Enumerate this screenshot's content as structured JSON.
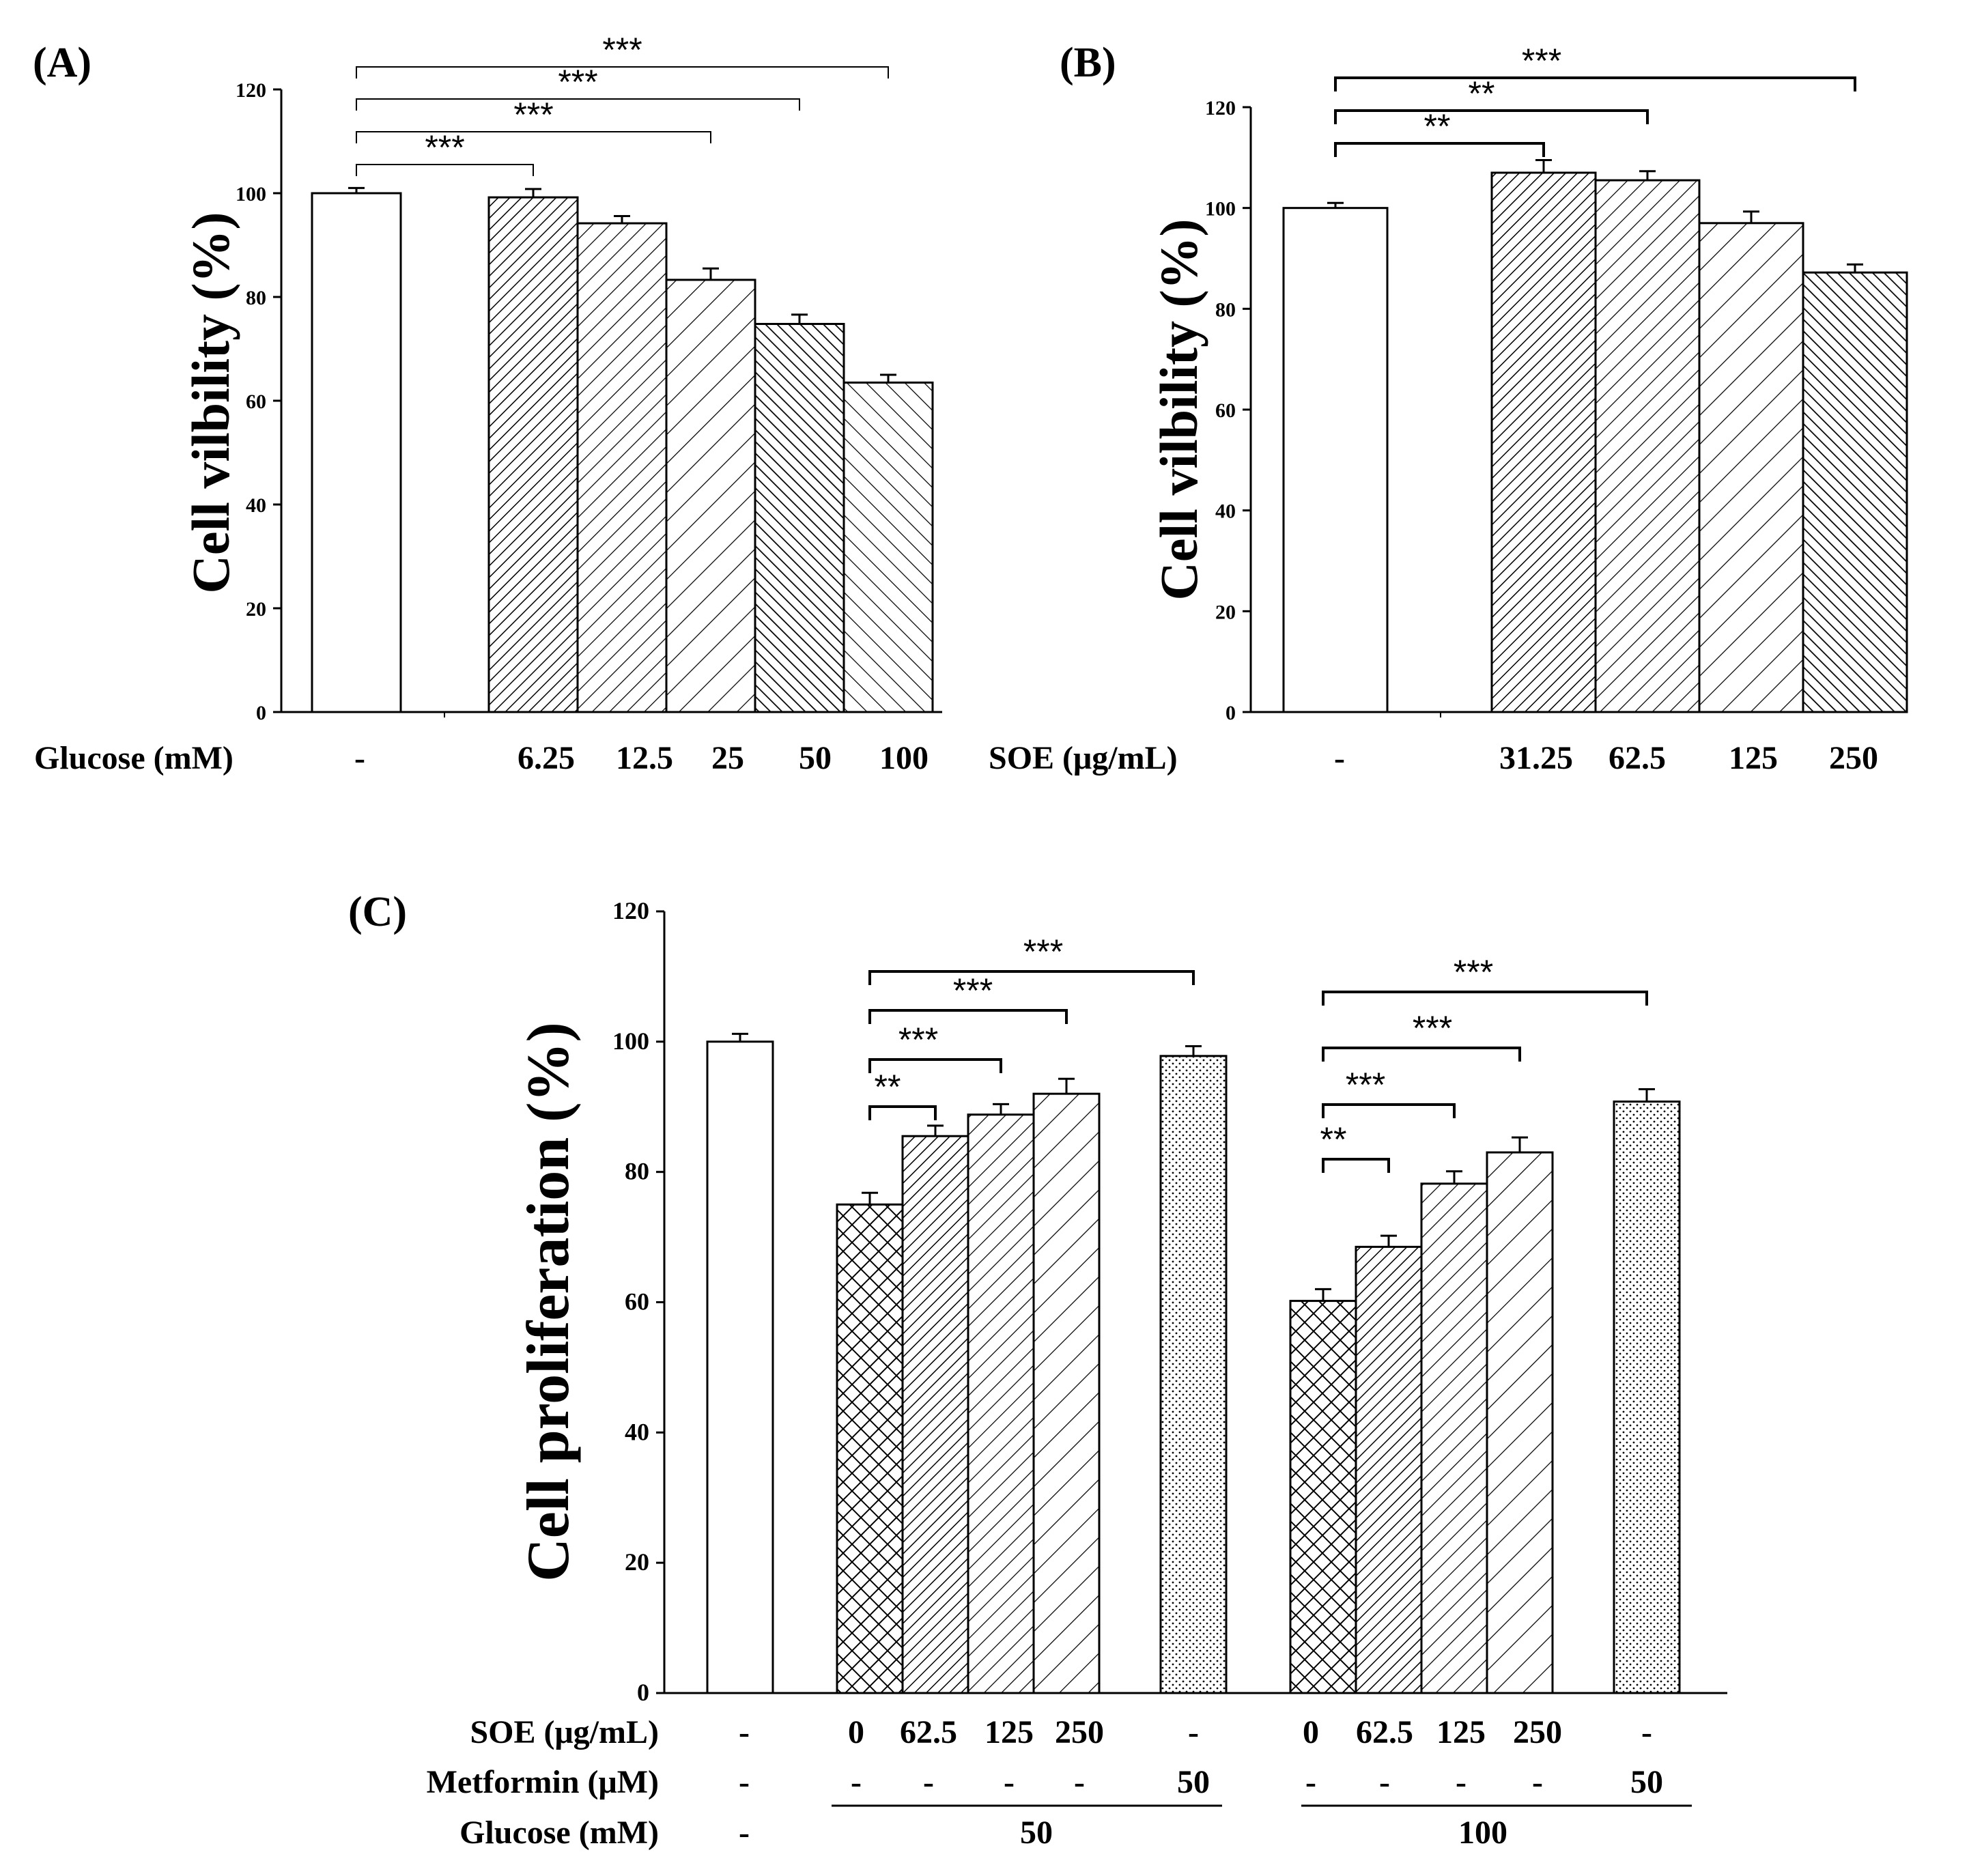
{
  "chart_data": [
    {
      "type": "bar",
      "panel_label": "(A)",
      "ylabel": "Cell vilbility (%)",
      "ylim": [
        0,
        120
      ],
      "yticks": [
        "0",
        "20",
        "40",
        "60",
        "80",
        "100",
        "120"
      ],
      "xlabel": "Glucose (mM)",
      "categories": [
        "-",
        "6.25",
        "12.5",
        "25",
        "50",
        "100"
      ],
      "values": [
        100,
        99.2,
        94.2,
        83.3,
        74.8,
        63.5
      ],
      "errors": [
        1.0,
        1.6,
        1.4,
        2.2,
        1.8,
        1.5
      ],
      "significance": [
        {
          "from": "-",
          "to": "6.25",
          "label": "***"
        },
        {
          "from": "-",
          "to": "25",
          "label": "***"
        },
        {
          "from": "-",
          "to": "50",
          "label": "***"
        },
        {
          "from": "-",
          "to": "100",
          "label": "***"
        }
      ]
    },
    {
      "type": "bar",
      "panel_label": "(B)",
      "ylabel": "Cell vilbility (%)",
      "ylim": [
        0,
        120
      ],
      "yticks": [
        "0",
        "20",
        "40",
        "60",
        "80",
        "100",
        "120"
      ],
      "xlabel": "SOE (μg/mL)",
      "categories": [
        "-",
        "31.25",
        "62.5",
        "125",
        "250"
      ],
      "values": [
        100,
        107,
        105.5,
        97,
        87.2
      ],
      "errors": [
        1.0,
        2.5,
        1.8,
        2.3,
        1.6
      ],
      "significance": [
        {
          "from": "-",
          "to": "31.25",
          "label": "**"
        },
        {
          "from": "-",
          "to": "62.5",
          "label": "**"
        },
        {
          "from": "-",
          "to": "250",
          "label": "***"
        }
      ]
    },
    {
      "type": "bar",
      "panel_label": "(C)",
      "ylabel": "Cell proliferation (%)",
      "ylim": [
        0,
        120
      ],
      "yticks": [
        "0",
        "20",
        "40",
        "60",
        "80",
        "100",
        "120"
      ],
      "rows": [
        {
          "label": "SOE (μg/mL)",
          "values": [
            "-",
            "0",
            "62.5",
            "125",
            "250",
            "-",
            "0",
            "62.5",
            "125",
            "250",
            "-"
          ]
        },
        {
          "label": "Metformin (μM)",
          "values": [
            "-",
            "-",
            "-",
            "-",
            "-",
            "50",
            "-",
            "-",
            "-",
            "-",
            "50"
          ]
        },
        {
          "label": "Glucose (mM)",
          "groups": [
            {
              "value": "-"
            },
            {
              "value": "50"
            },
            {
              "value": "100"
            }
          ]
        }
      ],
      "values": [
        100,
        75,
        85.5,
        88.8,
        92,
        97.8,
        60.2,
        68.5,
        78.2,
        83,
        90.8
      ],
      "errors": [
        1.2,
        1.8,
        1.6,
        1.6,
        2.3,
        1.5,
        1.8,
        1.7,
        1.9,
        2.3,
        1.9
      ],
      "significance": [
        {
          "from": 1,
          "to": 2,
          "label": "**"
        },
        {
          "from": 1,
          "to": 3,
          "label": "***"
        },
        {
          "from": 1,
          "to": 4,
          "label": "***"
        },
        {
          "from": 1,
          "to": 5,
          "label": "***"
        },
        {
          "from": 6,
          "to": 7,
          "label": "**"
        },
        {
          "from": 6,
          "to": 8,
          "label": "***"
        },
        {
          "from": 6,
          "to": 9,
          "label": "***"
        },
        {
          "from": 6,
          "to": 10,
          "label": "***"
        }
      ]
    }
  ]
}
